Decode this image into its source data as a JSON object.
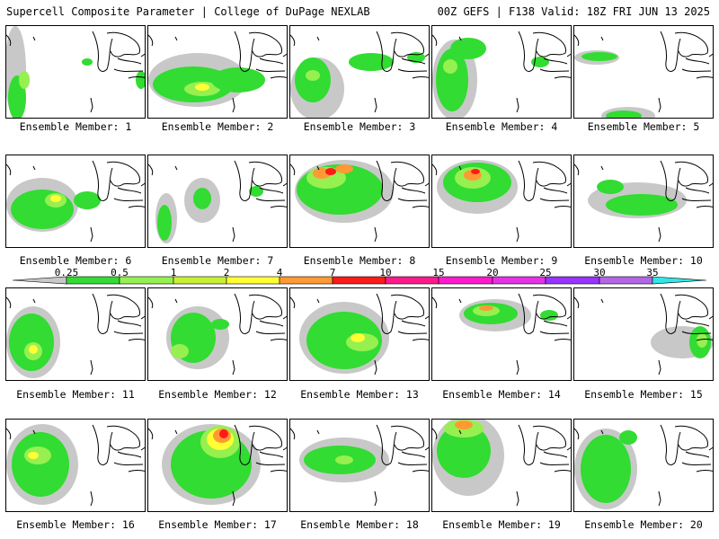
{
  "header": {
    "left_title": "Supercell Composite Parameter | College of DuPage NEXLAB",
    "right_title": "00Z GEFS | F138 Valid: 18Z FRI JUN 13 2025"
  },
  "legend": {
    "labels": [
      "0.25",
      "0.5",
      "1",
      "2",
      "4",
      "7",
      "10",
      "15",
      "20",
      "25",
      "30",
      "35"
    ],
    "colors": [
      "#c8c8c8",
      "#32dc32",
      "#96f050",
      "#c8f032",
      "#ffff33",
      "#ff9933",
      "#ff1a1a",
      "#ff1a8c",
      "#ff1acc",
      "#e632e6",
      "#9933ff",
      "#b366e6",
      "#33e6e6"
    ]
  },
  "members": [
    {
      "caption": "Ensemble Member: 1"
    },
    {
      "caption": "Ensemble Member: 2"
    },
    {
      "caption": "Ensemble Member: 3"
    },
    {
      "caption": "Ensemble Member: 4"
    },
    {
      "caption": "Ensemble Member: 5"
    },
    {
      "caption": "Ensemble Member: 6"
    },
    {
      "caption": "Ensemble Member: 7"
    },
    {
      "caption": "Ensemble Member: 8"
    },
    {
      "caption": "Ensemble Member: 9"
    },
    {
      "caption": "Ensemble Member: 10"
    },
    {
      "caption": "Ensemble Member: 11"
    },
    {
      "caption": "Ensemble Member: 12"
    },
    {
      "caption": "Ensemble Member: 13"
    },
    {
      "caption": "Ensemble Member: 14"
    },
    {
      "caption": "Ensemble Member: 15"
    },
    {
      "caption": "Ensemble Member: 16"
    },
    {
      "caption": "Ensemble Member: 17"
    },
    {
      "caption": "Ensemble Member: 18"
    },
    {
      "caption": "Ensemble Member: 19"
    },
    {
      "caption": "Ensemble Member: 20"
    }
  ]
}
